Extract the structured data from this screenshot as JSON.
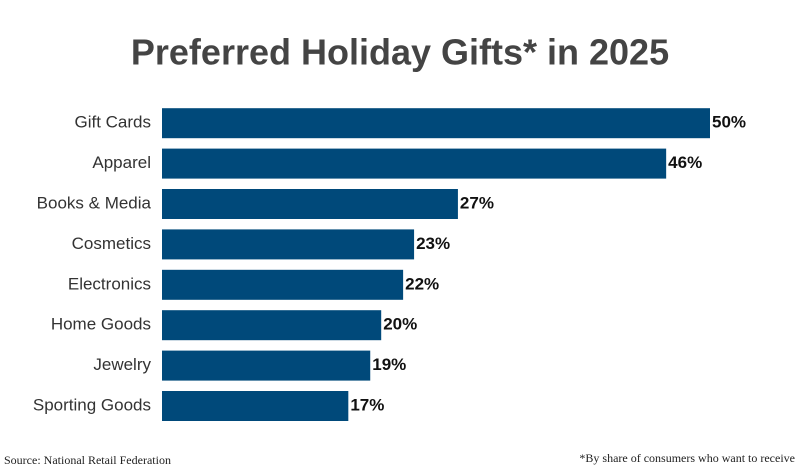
{
  "chart_data": {
    "type": "hbar",
    "title": "Preferred Holiday Gifts* in 2025",
    "categories": [
      "Gift Cards",
      "Apparel",
      "Books & Media",
      "Cosmetics",
      "Electronics",
      "Home Goods",
      "Jewelry",
      "Sporting Goods"
    ],
    "values": [
      50,
      46,
      27,
      23,
      22,
      20,
      19,
      17
    ],
    "value_labels": [
      "50%",
      "46%",
      "27%",
      "23%",
      "22%",
      "20%",
      "19%",
      "17%"
    ],
    "color": "#00497a",
    "source": "Source: National Retail Federation",
    "footnote": "*By share of consumers who want to receive"
  }
}
